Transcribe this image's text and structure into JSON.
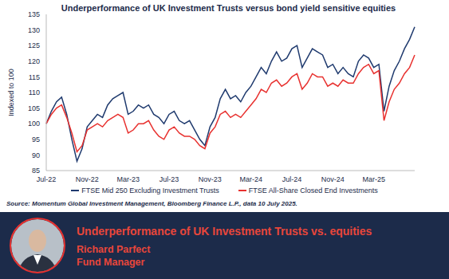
{
  "chart_data": {
    "type": "line",
    "title": "Underperformance of UK Investment Trusts versus bond yield sensitive equities",
    "y_label": "Indexed to 100",
    "categories": [
      "Jul-22",
      null,
      null,
      null,
      null,
      null,
      null,
      null,
      "Nov-22",
      null,
      null,
      null,
      null,
      null,
      null,
      null,
      "Mar-23",
      null,
      null,
      null,
      null,
      null,
      null,
      null,
      "Jul-23",
      null,
      null,
      null,
      null,
      null,
      null,
      null,
      "Nov-23",
      null,
      null,
      null,
      null,
      null,
      null,
      null,
      "Mar-24",
      null,
      null,
      null,
      null,
      null,
      null,
      null,
      "Jul-24",
      null,
      null,
      null,
      null,
      null,
      null,
      null,
      "Nov-24",
      null,
      null,
      null,
      null,
      null,
      null,
      null,
      "Mar-25",
      null,
      null,
      null,
      null,
      null,
      null,
      null,
      null
    ],
    "series": [
      {
        "name": "FTSE Mid 250 Excluding Investment Trusts",
        "color": "#1f3a6e",
        "values": [
          100,
          104,
          107,
          108.5,
          103,
          95,
          88,
          92,
          99,
          101,
          103,
          102,
          106,
          108,
          109,
          110,
          103,
          104,
          106,
          105,
          106,
          103,
          102,
          100,
          103,
          104,
          101,
          100,
          101,
          98,
          95,
          93,
          99,
          102,
          108,
          111,
          108,
          109,
          107,
          110,
          112,
          115,
          118,
          116,
          120,
          123,
          120,
          121,
          124,
          125,
          118,
          121,
          124,
          123,
          122,
          118,
          119,
          116,
          118,
          116,
          115,
          120,
          122,
          121,
          118,
          119,
          104,
          112,
          117,
          120,
          124,
          127,
          131
        ]
      },
      {
        "name": "FTSE All-Share Closed End Investments",
        "color": "#e8312f",
        "values": [
          100,
          103,
          105,
          106,
          102,
          97,
          91,
          93,
          98,
          99,
          100,
          99,
          101,
          102,
          103,
          102,
          97,
          98,
          100,
          100,
          101,
          98,
          96,
          95,
          98,
          99,
          97,
          96,
          96,
          95,
          93,
          92,
          97,
          99,
          103,
          104,
          102,
          103,
          102,
          104,
          106,
          108,
          111,
          110,
          113,
          114,
          112,
          113,
          115,
          116,
          111,
          113,
          116,
          115,
          115,
          112,
          113,
          112,
          114,
          113,
          113,
          116,
          118,
          119,
          116,
          117,
          101,
          107,
          111,
          113,
          116,
          118,
          122
        ]
      }
    ],
    "ylim": [
      85,
      135
    ],
    "yticks": [
      85,
      90,
      95,
      100,
      105,
      110,
      115,
      120,
      125,
      130,
      135
    ],
    "grid": false,
    "legend": "bottom",
    "source": "Source: Momentum Global Investment Management, Bloomberg Finance L.P., data 10 July 2025."
  },
  "banner": {
    "headline": "Underperformance of UK Investment Trusts vs. equities",
    "name": "Richard Parfect",
    "role": "Fund Manager"
  }
}
